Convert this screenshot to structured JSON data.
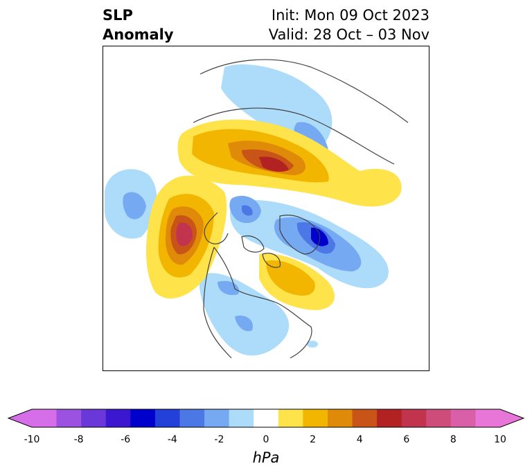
{
  "title": {
    "left_line1": "SLP",
    "left_line2": "Anomaly",
    "right_line1": "Init: Mon 09 Oct 2023",
    "right_line2": "Valid: 28 Oct – 03 Nov"
  },
  "colorbar": {
    "units": "hPa",
    "ticks": [
      "-10",
      "-8",
      "-6",
      "-4",
      "-2",
      "0",
      "2",
      "4",
      "6",
      "8",
      "10"
    ],
    "levels": [
      -10,
      -9,
      -8,
      -7,
      -6,
      -5,
      -4,
      -3,
      -2,
      -1,
      1,
      2,
      3,
      4,
      5,
      6,
      7,
      8,
      9,
      10
    ],
    "colors": [
      "#d56ee8",
      "#9b52e0",
      "#6a38d8",
      "#3b18cf",
      "#0000cc",
      "#2340d8",
      "#4c78e6",
      "#75aaf2",
      "#acdcfa",
      "#ffffff",
      "#ffe34a",
      "#f2b600",
      "#e08a0a",
      "#c85418",
      "#b22222",
      "#c2344e",
      "#ce4c7a",
      "#d85fa8",
      "#e876d8"
    ]
  },
  "palette": {
    "neg1": "#acdcfa",
    "neg2": "#75aaf2",
    "neg3": "#4c78e6",
    "neg4": "#2340d8",
    "neg5": "#0000cc",
    "pos1": "#ffe34a",
    "pos2": "#f2b600",
    "pos3": "#e08a0a",
    "pos4": "#c85418",
    "pos5": "#b22222",
    "pos6": "#c2344e"
  }
}
